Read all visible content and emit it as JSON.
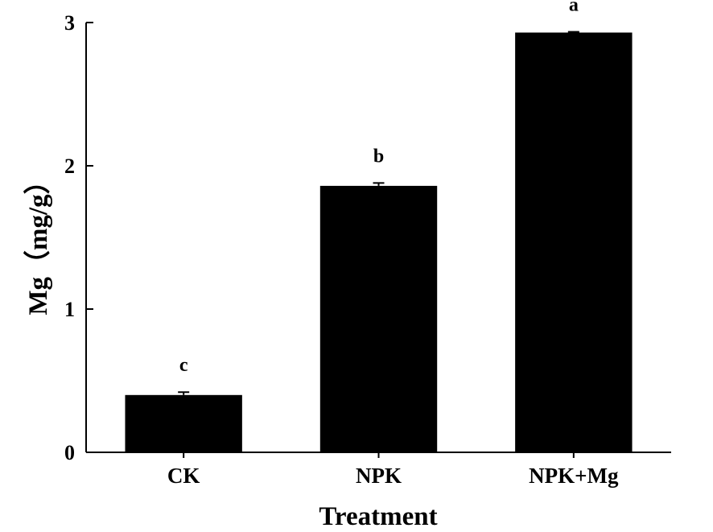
{
  "chart_data": {
    "type": "bar",
    "title": "",
    "xlabel": "Treatment",
    "ylabel": "Mg（mg/g）",
    "categories": [
      "CK",
      "NPK",
      "NPK+Mg"
    ],
    "values": [
      0.4,
      1.86,
      2.93
    ],
    "errors": [
      0.02,
      0.02,
      0.005
    ],
    "significance": [
      "c",
      "b",
      "a"
    ],
    "ylim": [
      0,
      3
    ],
    "yticks": [
      "0",
      "1",
      "2",
      "3"
    ],
    "grid": false,
    "legend": "none",
    "bar_color": "#000000"
  }
}
